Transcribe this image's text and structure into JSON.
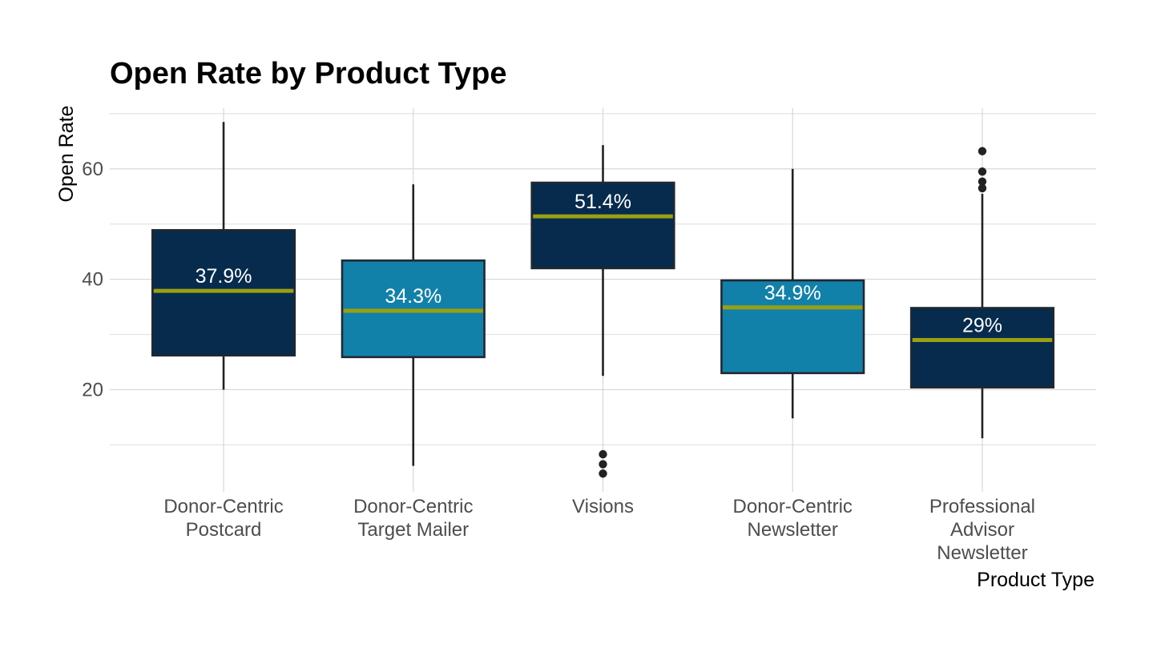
{
  "chart_data": {
    "type": "boxplot",
    "title": "Open Rate by Product Type",
    "xlabel": "Product Type",
    "ylabel": "Open Rate",
    "ylim": [
      1.5,
      71
    ],
    "y_ticks": [
      20,
      40,
      60
    ],
    "y_minor_ticks": [
      10,
      30,
      50,
      70
    ],
    "grid": true,
    "legend": "none",
    "colors": {
      "dark": "#062b4c",
      "light": "#1281aa",
      "median": "#9aa012",
      "outline": "#222831"
    },
    "categories": [
      {
        "label_lines": [
          "Donor-Centric",
          "Postcard"
        ],
        "fill": "dark",
        "whisker_low": 20,
        "q1": 26.2,
        "median": 37.9,
        "q3": 48.9,
        "whisker_high": 68.5,
        "outliers": [],
        "median_label": "37.9%"
      },
      {
        "label_lines": [
          "Donor-Centric",
          "Target Mailer"
        ],
        "fill": "light",
        "whisker_low": 6.2,
        "q1": 25.9,
        "median": 34.3,
        "q3": 43.4,
        "whisker_high": 57.2,
        "outliers": [],
        "median_label": "34.3%"
      },
      {
        "label_lines": [
          "Visions"
        ],
        "fill": "dark",
        "whisker_low": 22.5,
        "q1": 42.0,
        "median": 51.4,
        "q3": 57.5,
        "whisker_high": 64.3,
        "outliers": [
          4.8,
          6.5,
          8.3
        ],
        "median_label": "51.4%"
      },
      {
        "label_lines": [
          "Donor-Centric",
          "Newsletter"
        ],
        "fill": "light",
        "whisker_low": 14.8,
        "q1": 23.0,
        "median": 34.9,
        "q3": 39.8,
        "whisker_high": 60.0,
        "outliers": [],
        "median_label": "34.9%"
      },
      {
        "label_lines": [
          "Professional",
          "Advisor",
          "Newsletter"
        ],
        "fill": "dark",
        "whisker_low": 11.2,
        "q1": 20.4,
        "median": 29.0,
        "q3": 34.8,
        "whisker_high": 55.5,
        "outliers": [
          56.5,
          57.7,
          59.5,
          63.2
        ],
        "median_label": "29%"
      }
    ]
  }
}
